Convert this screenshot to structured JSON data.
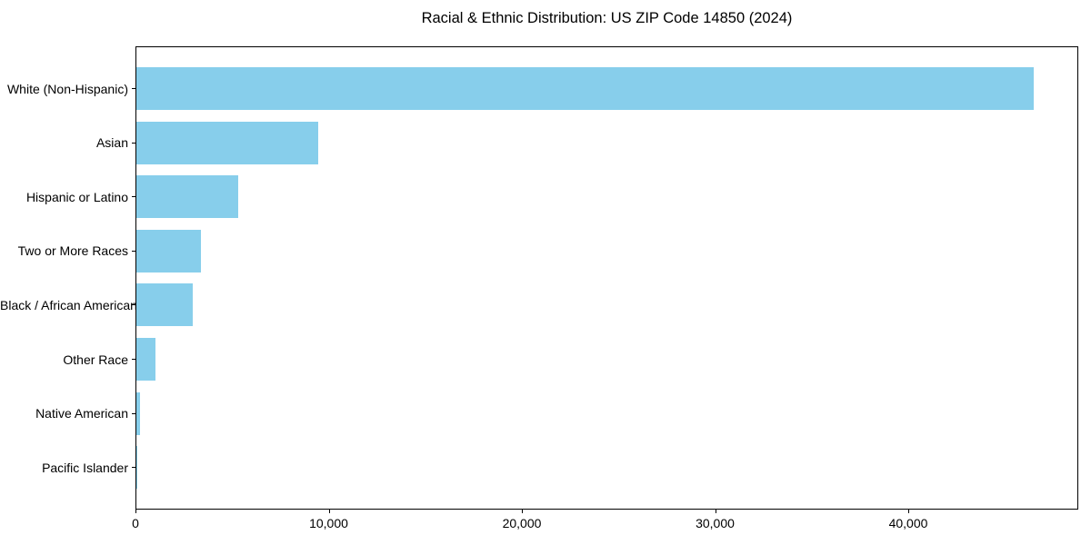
{
  "title": "Racial & Ethnic Distribution: US ZIP Code 14850 (2024)",
  "colors": {
    "bar": "#87CEEB",
    "axis": "#000000",
    "text": "#000000",
    "background": "#FFFFFF"
  },
  "chart_data": {
    "type": "bar",
    "orientation": "horizontal",
    "title": "Racial & Ethnic Distribution: US ZIP Code 14850 (2024)",
    "xlabel": "",
    "ylabel": "",
    "categories": [
      "White (Non-Hispanic)",
      "Asian",
      "Hispanic or Latino",
      "Two or More Races",
      "Black / African American",
      "Other Race",
      "Native American",
      "Pacific Islander"
    ],
    "values": [
      46450,
      9430,
      5270,
      3330,
      2930,
      990,
      170,
      15
    ],
    "bar_color": "#87CEEB",
    "xlim": [
      0,
      48800
    ],
    "x_ticks": [
      0,
      10000,
      20000,
      30000,
      40000
    ],
    "x_tick_labels": [
      "0",
      "10,000",
      "20,000",
      "30,000",
      "40,000"
    ],
    "grid": false,
    "legend": false
  }
}
